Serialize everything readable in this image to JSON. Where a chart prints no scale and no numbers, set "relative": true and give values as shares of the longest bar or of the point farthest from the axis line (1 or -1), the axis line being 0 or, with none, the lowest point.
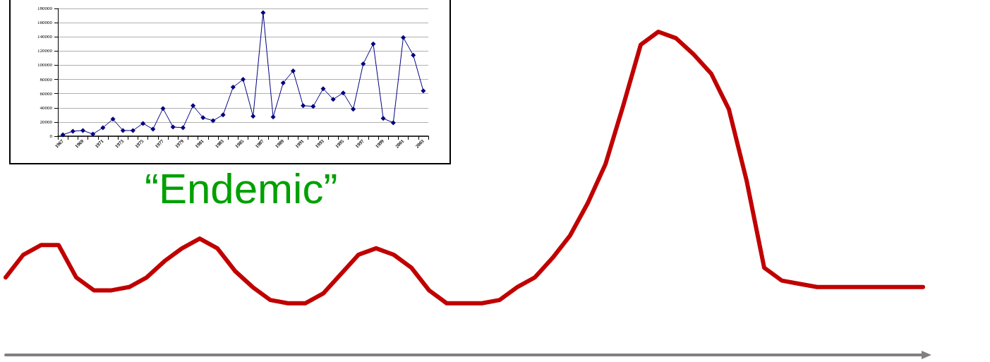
{
  "chart_data": [
    {
      "type": "line",
      "categories": [
        "1967",
        null,
        "1969",
        null,
        "1971",
        null,
        "1973",
        null,
        "1975",
        null,
        "1977",
        null,
        "1979",
        null,
        "1981",
        null,
        "1983",
        null,
        "1985",
        null,
        "1987",
        null,
        "1989",
        null,
        "1991",
        null,
        "1993",
        null,
        "1995",
        null,
        "1997",
        null,
        "1999",
        null,
        "2001",
        null,
        "2003"
      ],
      "series": [
        {
          "color": "#000080",
          "values": [
            2000,
            7000,
            8000,
            3000,
            12000,
            24000,
            8000,
            8000,
            18000,
            10000,
            39000,
            13000,
            12000,
            43000,
            26000,
            22000,
            30000,
            69000,
            80000,
            28000,
            174000,
            27000,
            75000,
            92000,
            43000,
            42000,
            67000,
            52000,
            61000,
            38000,
            102000,
            130000,
            25000,
            19000,
            139000,
            114000,
            64000
          ]
        }
      ],
      "ylim": [
        0,
        180000
      ],
      "yticks": [
        0,
        20000,
        40000,
        60000,
        80000,
        100000,
        120000,
        140000,
        160000,
        180000
      ],
      "grid": "y",
      "marker": "diamond"
    },
    {
      "type": "line",
      "relative": true,
      "title": "“Endemic”",
      "categories": [
        null,
        null,
        null,
        null,
        null,
        null,
        null,
        null,
        null,
        null,
        null,
        null,
        null,
        null,
        null,
        null,
        null,
        null,
        null,
        null,
        null,
        null,
        null,
        null,
        null,
        null,
        null,
        null,
        null,
        null,
        null,
        null,
        null,
        null,
        null,
        null,
        null,
        null,
        null,
        null,
        null,
        null,
        null,
        null,
        null,
        null,
        null,
        null,
        null,
        null,
        null,
        null,
        null
      ],
      "series": [
        {
          "color": "#c00000",
          "values": [
            0.24,
            0.31,
            0.34,
            0.34,
            0.24,
            0.2,
            0.2,
            0.21,
            0.24,
            0.29,
            0.33,
            0.36,
            0.33,
            0.26,
            0.21,
            0.17,
            0.16,
            0.16,
            0.19,
            0.25,
            0.31,
            0.33,
            0.31,
            0.27,
            0.2,
            0.16,
            0.16,
            0.16,
            0.17,
            0.21,
            0.24,
            0.3,
            0.37,
            0.47,
            0.59,
            0.77,
            0.96,
            1,
            0.98,
            0.93,
            0.87,
            0.76,
            0.54,
            0.27,
            0.23,
            0.22,
            0.21,
            0.21,
            0.21,
            0.21,
            0.21,
            0.21,
            0.21
          ]
        }
      ],
      "marker": "none",
      "grid": false
    }
  ]
}
